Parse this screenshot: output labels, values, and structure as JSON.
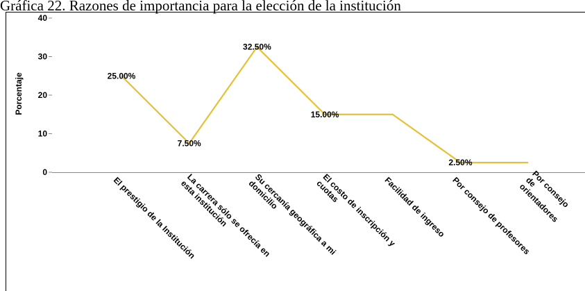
{
  "page": {
    "title": "Gráfica 22. Razones de importancia para la elección de la institución"
  },
  "chart_data": {
    "type": "line",
    "title": "",
    "xlabel": "",
    "ylabel": "Porcentaje",
    "ylim": [
      0,
      40
    ],
    "yticks": [
      0,
      10,
      20,
      30,
      40
    ],
    "grid": false,
    "legend": "none",
    "line_color": "#e6c035",
    "categories": [
      [
        "El prestigio de la Institución"
      ],
      [
        "La carrera sólo se ofrecía en",
        "esta institución"
      ],
      [
        "Su cercanía geográfica a mi",
        "domicilio"
      ],
      [
        "El costo de inscripción y",
        "cuotas"
      ],
      [
        "Facilidad de ingreso"
      ],
      [
        "Por consejo de profesores"
      ],
      [
        "Por consejo",
        "de",
        "orientadores"
      ]
    ],
    "values": [
      25.0,
      7.5,
      32.5,
      15.0,
      15.0,
      2.5,
      2.5
    ],
    "data_labels": [
      "25.00%",
      "7.50%",
      "32.50%",
      "15.00%",
      "",
      "2.50%",
      ""
    ]
  }
}
